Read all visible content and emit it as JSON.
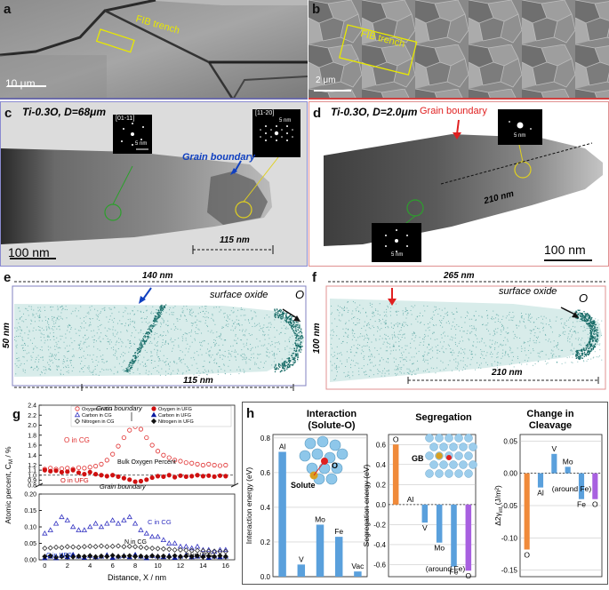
{
  "panel_a": {
    "letter": "a",
    "fib_label": "FIB trench",
    "scale_label": "10 μm"
  },
  "panel_b": {
    "letter": "b",
    "fib_label": "FIB trench",
    "scale_label": "2 μm"
  },
  "panel_c": {
    "letter": "c",
    "title": "Ti-0.3O, D=68μm",
    "dp1_label": "[01-11]",
    "dp1_scale": "5 nm",
    "dp2_label": "[11-20]",
    "dp2_scale": "5 nm",
    "gb_label": "Grain boundary",
    "width_label": "115 nm",
    "scale_label": "100 nm"
  },
  "panel_d": {
    "letter": "d",
    "title": "Ti-0.3O, D=2.0μm",
    "gb_label": "Grain boundary",
    "dp1_scale": "5 nm",
    "dp2_scale": "5 nm",
    "width_label": "210 nm",
    "scale_label": "100 nm"
  },
  "panel_e": {
    "letter": "e",
    "top_label": "140 nm",
    "side_label": "50 nm",
    "oxide_label": "surface oxide",
    "element": "O",
    "bottom_label": "115 nm"
  },
  "panel_f": {
    "letter": "f",
    "top_label": "265 nm",
    "side_label": "100 nm",
    "oxide_label": "surface oxide",
    "element": "O",
    "bottom_label": "210 nm"
  },
  "panel_g": {
    "letter": "g",
    "ylabel": "Atomic percent, C",
    "ylabel_sub": "M",
    "ylabel_unit": " / %",
    "xlabel": "Distance, X / nm",
    "legend": [
      "Oxygen in CG",
      "Oxygen in UFG",
      "Carbon in CG",
      "Carbon in UFG",
      "Nitrogen in CG",
      "Nitrogen in UFG"
    ],
    "ann_gb_top": "Grain boundary",
    "ann_o_cg": "O in CG",
    "ann_bulk": "Bulk Oxygen Percent",
    "ann_o_ufg": "O in UFG",
    "ann_gb_bottom": "Grain boundary",
    "ann_c_cg": "C in CG",
    "ann_n_cg": "N in CG",
    "ann_c_ufg": "C in UFG",
    "ann_n_ufg": "N in UFG",
    "upper_ticks": [
      "0.8",
      "0.9",
      "1.0",
      "1.1",
      "1.2",
      "1.4",
      "1.6",
      "1.8",
      "2.0",
      "2.2",
      "2.4"
    ],
    "lower_ticks": [
      "0.00",
      "0.05",
      "0.10",
      "0.15",
      "0.20"
    ],
    "x_ticks": [
      "0",
      "2",
      "4",
      "6",
      "8",
      "10",
      "12",
      "14",
      "16"
    ]
  },
  "panel_h": {
    "letter": "h",
    "title1a": "Interaction",
    "title1b": "(Solute-O)",
    "title2": "Segregation",
    "title3a": "Change in",
    "title3b": "Cleavage",
    "ylabel1": "Interaction energy (eV)",
    "ylabel2": "Segregation energy (eV)",
    "ylabel3": "Δ2γ",
    "ylabel3_sub": "int",
    "ylabel3_unit": " (J/m²)",
    "struct1_o": "O",
    "struct1_solute": "Solute",
    "struct2_gb": "GB",
    "around_fe": "(around Fe)",
    "ticks1": [
      "0.0",
      "0.2",
      "0.4",
      "0.6",
      "0.8"
    ],
    "ticks2": [
      "0.6",
      "0.4",
      "0.2",
      "0.0",
      "-0.2",
      "-0.4",
      "-0.6"
    ],
    "ticks3": [
      "0.05",
      "0.00",
      "-0.05",
      "-0.10",
      "-0.15"
    ]
  },
  "chart_data": [
    {
      "type": "scatter",
      "title": "",
      "xlabel": "Distance, X / nm",
      "ylabel": "Atomic percent, C_M / %",
      "xlim": [
        -0.5,
        16.8
      ],
      "ylim": [
        0,
        2.4
      ],
      "series": [
        {
          "name": "Oxygen in CG",
          "color": "#e03030",
          "marker": "open-circle",
          "x": [
            0,
            0.5,
            1,
            1.5,
            2,
            2.5,
            3,
            3.5,
            4,
            4.5,
            5,
            5.5,
            6,
            6.5,
            7,
            7.5,
            8,
            8.5,
            9,
            9.5,
            10,
            10.5,
            11,
            11.5,
            12,
            12.5,
            13,
            13.5,
            14,
            14.5,
            15,
            15.5,
            16
          ],
          "y": [
            1.12,
            1.14,
            1.12,
            1.13,
            1.14,
            1.12,
            1.15,
            1.14,
            1.16,
            1.18,
            1.22,
            1.3,
            1.42,
            1.58,
            1.75,
            1.9,
            1.97,
            1.92,
            1.75,
            1.6,
            1.48,
            1.4,
            1.35,
            1.3,
            1.28,
            1.25,
            1.24,
            1.22,
            1.2,
            1.22,
            1.2,
            1.19,
            1.2
          ]
        },
        {
          "name": "Oxygen in UFG",
          "color": "#d01010",
          "marker": "filled-circle",
          "x": [
            0,
            0.5,
            1,
            1.5,
            2,
            2.5,
            3,
            3.5,
            4,
            4.5,
            5,
            5.5,
            6,
            6.5,
            7,
            7.5,
            8,
            8.5,
            9,
            9.5,
            10,
            10.5,
            11,
            11.5,
            12,
            12.5,
            13,
            13.5,
            14,
            14.5,
            15,
            15.5,
            16
          ],
          "y": [
            1.1,
            1.08,
            1.09,
            1.06,
            1.07,
            1.1,
            1.05,
            1.02,
            1.06,
            1.02,
            1.0,
            0.98,
            1.0,
            0.97,
            0.94,
            0.91,
            0.87,
            0.88,
            0.91,
            0.95,
            0.98,
            0.97,
            1.0,
            0.96,
            0.99,
            0.97,
            0.98,
            1.0,
            0.98,
            0.99,
            0.97,
            0.99,
            0.98
          ]
        },
        {
          "name": "Carbon in CG",
          "color": "#3030c0",
          "marker": "open-triangle",
          "x": [
            0,
            0.5,
            1,
            1.5,
            2,
            2.5,
            3,
            3.5,
            4,
            4.5,
            5,
            5.5,
            6,
            6.5,
            7,
            7.5,
            8,
            8.5,
            9,
            9.5,
            10,
            10.5,
            11,
            11.5,
            12,
            12.5,
            13,
            13.5,
            14,
            14.5,
            15,
            15.5,
            16
          ],
          "y": [
            0.08,
            0.09,
            0.11,
            0.13,
            0.12,
            0.1,
            0.09,
            0.09,
            0.1,
            0.11,
            0.1,
            0.11,
            0.12,
            0.11,
            0.12,
            0.13,
            0.11,
            0.09,
            0.08,
            0.07,
            0.07,
            0.06,
            0.05,
            0.05,
            0.04,
            0.04,
            0.035,
            0.04,
            0.03,
            0.03,
            0.025,
            0.03,
            0.03
          ]
        },
        {
          "name": "Carbon in UFG",
          "color": "#0a1aa0",
          "marker": "filled-triangle",
          "x": [
            0,
            0.5,
            1,
            1.5,
            2,
            2.5,
            3,
            3.5,
            4,
            4.5,
            5,
            5.5,
            6,
            6.5,
            7,
            7.5,
            8,
            8.5,
            9,
            9.5,
            10,
            10.5,
            11,
            11.5,
            12,
            12.5,
            13,
            13.5,
            14,
            14.5,
            15,
            15.5,
            16
          ],
          "y": [
            0.005,
            0.01,
            0.005,
            0.012,
            0.008,
            0.015,
            0.01,
            0.006,
            0.012,
            0.008,
            0.01,
            0.014,
            0.006,
            0.01,
            0.012,
            0.008,
            0.015,
            0.01,
            0.005,
            0.012,
            0.01,
            0.008,
            0.012,
            0.006,
            0.01,
            0.014,
            0.008,
            0.01,
            0.012,
            0.006,
            0.01,
            0.008,
            0.01
          ]
        },
        {
          "name": "Nitrogen in CG",
          "color": "#333333",
          "marker": "open-diamond",
          "x": [
            0,
            0.5,
            1,
            1.5,
            2,
            2.5,
            3,
            3.5,
            4,
            4.5,
            5,
            5.5,
            6,
            6.5,
            7,
            7.5,
            8,
            8.5,
            9,
            9.5,
            10,
            10.5,
            11,
            11.5,
            12,
            12.5,
            13,
            13.5,
            14,
            14.5,
            15,
            15.5,
            16
          ],
          "y": [
            0.035,
            0.036,
            0.038,
            0.037,
            0.04,
            0.039,
            0.038,
            0.04,
            0.041,
            0.04,
            0.042,
            0.04,
            0.041,
            0.042,
            0.04,
            0.041,
            0.04,
            0.038,
            0.036,
            0.035,
            0.034,
            0.033,
            0.032,
            0.03,
            0.03,
            0.029,
            0.028,
            0.028,
            0.027,
            0.026,
            0.026,
            0.025,
            0.025
          ]
        },
        {
          "name": "Nitrogen in UFG",
          "color": "#111111",
          "marker": "filled-diamond",
          "x": [
            0,
            0.5,
            1,
            1.5,
            2,
            2.5,
            3,
            3.5,
            4,
            4.5,
            5,
            5.5,
            6,
            6.5,
            7,
            7.5,
            8,
            8.5,
            9,
            9.5,
            10,
            10.5,
            11,
            11.5,
            12,
            12.5,
            13,
            13.5,
            14,
            14.5,
            15,
            15.5,
            16
          ],
          "y": [
            0.01,
            0.012,
            0.008,
            0.01,
            0.012,
            0.009,
            0.011,
            0.01,
            0.012,
            0.009,
            0.011,
            0.01,
            0.013,
            0.01,
            0.011,
            0.012,
            0.01,
            0.011,
            0.009,
            0.012,
            0.01,
            0.011,
            0.009,
            0.012,
            0.01,
            0.011,
            0.01,
            0.012,
            0.009,
            0.011,
            0.01,
            0.012,
            0.01
          ]
        }
      ],
      "reference_line": {
        "y": 1.0,
        "label": "Bulk Oxygen Percent"
      }
    },
    {
      "type": "bar",
      "title": "Interaction (Solute-O)",
      "ylabel": "Interaction energy (eV)",
      "categories": [
        "Al",
        "V",
        "Mo",
        "Fe",
        "Vac"
      ],
      "values": [
        0.72,
        0.07,
        0.3,
        0.23,
        0.03
      ],
      "color": "#5aa0dc",
      "ylim": [
        0,
        0.82
      ]
    },
    {
      "type": "bar",
      "title": "Segregation",
      "ylabel": "Segregation energy (eV)",
      "categories": [
        "O",
        "Al",
        "V",
        "Mo",
        "Fe",
        "O"
      ],
      "values": [
        0.6,
        0.0,
        -0.18,
        -0.38,
        -0.62,
        -0.66
      ],
      "colors": [
        "#f08a3a",
        "#5aa0dc",
        "#5aa0dc",
        "#5aa0dc",
        "#5aa0dc",
        "#a860e0"
      ],
      "ylim": [
        -0.72,
        0.7
      ]
    },
    {
      "type": "bar",
      "title": "Change in Cleavage",
      "ylabel": "Δ2γ_int (J/m²)",
      "categories": [
        "O",
        "Al",
        "V",
        "Mo",
        "Fe",
        "O"
      ],
      "values": [
        -0.118,
        -0.022,
        0.03,
        0.01,
        -0.04,
        -0.04
      ],
      "colors": [
        "#f08a3a",
        "#5aa0dc",
        "#5aa0dc",
        "#5aa0dc",
        "#5aa0dc",
        "#a860e0"
      ],
      "ylim": [
        -0.16,
        0.06
      ]
    }
  ]
}
